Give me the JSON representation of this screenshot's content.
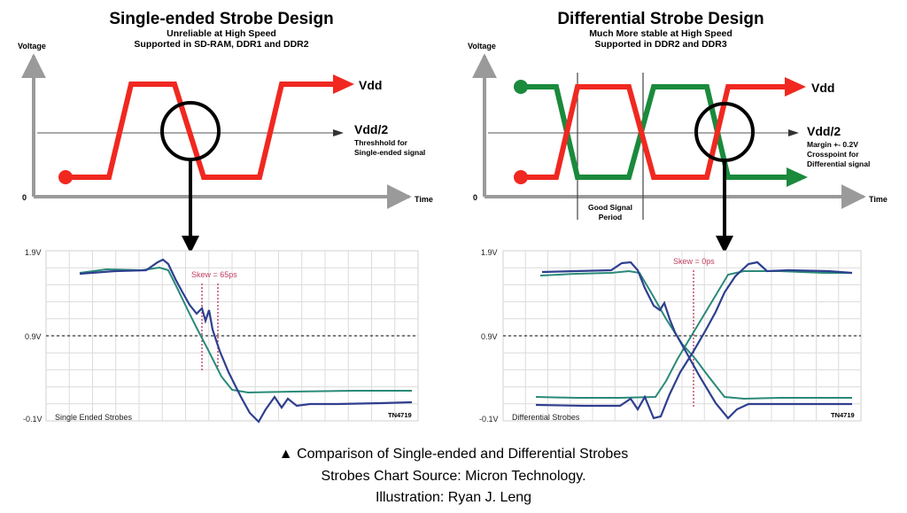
{
  "colors": {
    "red": "#f02820",
    "green": "#1a8a3c",
    "blue_trace": "#2e3f8f",
    "teal_trace": "#2a8a78",
    "skew_marker": "#c04060",
    "axis_gray": "#9a9a9a"
  },
  "left": {
    "title": "Single-ended Strobe Design",
    "subtitle_line1": "Unreliable at High Speed",
    "subtitle_line2": "Supported in SD-RAM, DDR1 and DDR2",
    "y_axis_label": "Voltage",
    "origin_label": "0",
    "x_axis_label": "Time",
    "vdd_label": "Vdd",
    "vdd2_label": "Vdd/2",
    "note_line1": "Threshhold for",
    "note_line2": "Single-ended signal",
    "scope": {
      "y_top": "1.9V",
      "y_mid": "0.9V",
      "y_bottom": "-0.1V",
      "skew_label": "Skew = 65ps",
      "caption": "Single Ended Strobes",
      "tag": "TN4719"
    }
  },
  "right": {
    "title": "Differential Strobe Design",
    "subtitle_line1": "Much More stable at High Speed",
    "subtitle_line2": "Supported in DDR2 and DDR3",
    "y_axis_label": "Voltage",
    "origin_label": "0",
    "x_axis_label": "Time",
    "vdd_label": "Vdd",
    "vdd2_label": "Vdd/2",
    "note_line1": "Margin +- 0.2V",
    "note_line2": "Crosspoint for",
    "note_line3": "Differential signal",
    "good_line1": "Good Signal",
    "good_line2": "Period",
    "scope": {
      "y_top": "1.9V",
      "y_mid": "0.9V",
      "y_bottom": "-0.1V",
      "skew_label": "Skew = 0ps",
      "caption": "Differential Strobes",
      "tag": "TN4719"
    }
  },
  "caption": {
    "line1": "▲ Comparison of Single-ended and Differential Strobes",
    "line2": "Strobes Chart Source: Micron Technology.",
    "line3": "Illustration: Ryan J. Leng"
  }
}
